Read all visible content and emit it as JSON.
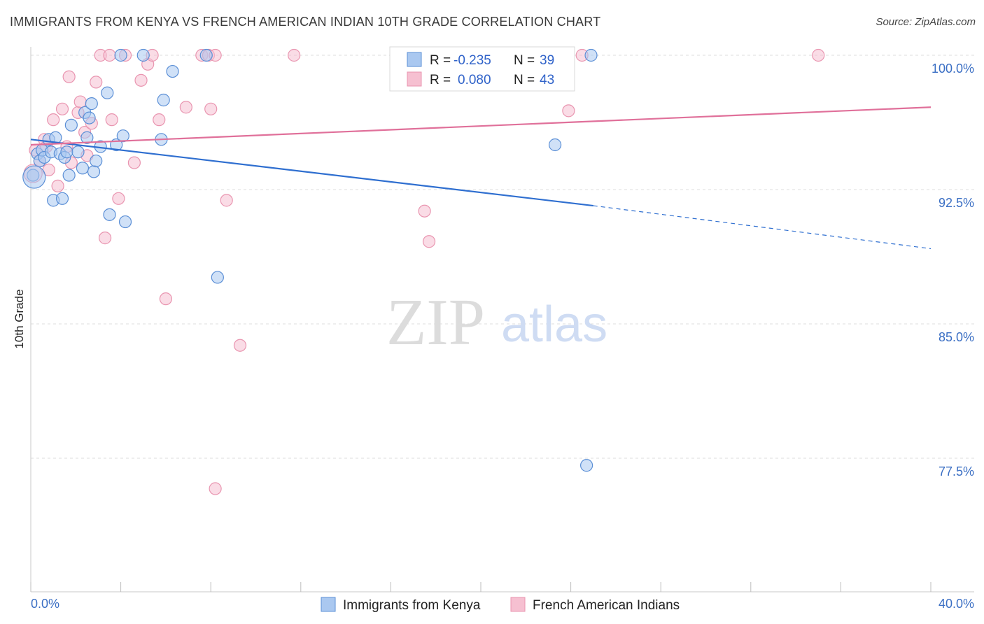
{
  "title": "IMMIGRANTS FROM KENYA VS FRENCH AMERICAN INDIAN 10TH GRADE CORRELATION CHART",
  "source": "Source: ZipAtlas.com",
  "watermark": {
    "zip": "ZIP",
    "atlas": "atlas"
  },
  "colors": {
    "blue_fill": "#aac8f0",
    "blue_stroke": "#5b8fd6",
    "blue_line": "#2f6fd0",
    "pink_fill": "#f6c0d1",
    "pink_stroke": "#e995b0",
    "pink_line": "#e0709a",
    "grid": "#dedede",
    "axis_text": "#3b6fc4"
  },
  "legend": {
    "rows": [
      {
        "r_label": "R =",
        "r_value": "-0.235",
        "n_label": "N =",
        "n_value": "39"
      },
      {
        "r_label": "R =",
        "r_value": "0.080",
        "n_label": "N =",
        "n_value": "43"
      }
    ]
  },
  "chart_data": {
    "type": "scatter",
    "title": "IMMIGRANTS FROM KENYA VS FRENCH AMERICAN INDIAN 10TH GRADE CORRELATION CHART",
    "xlabel": "",
    "ylabel": "10th Grade",
    "xlim": [
      0,
      40
    ],
    "ylim": [
      70.5,
      101.8
    ],
    "x_tick_labels": [
      "0.0%",
      "40.0%"
    ],
    "y_ticks": [
      100,
      92.5,
      85,
      77.5
    ],
    "y_tick_labels": [
      "100.0%",
      "92.5%",
      "85.0%",
      "77.5%"
    ],
    "series": [
      {
        "name": "Immigrants from Kenya",
        "color": "blue",
        "trend": {
          "x0": 0,
          "y0": 95.3,
          "x1": 25,
          "y1": 91.6,
          "dash_to_x": 40,
          "dash_to_y": 89.2
        },
        "points": [
          [
            0.1,
            93.3
          ],
          [
            0.3,
            94.5
          ],
          [
            0.4,
            94.1
          ],
          [
            0.5,
            94.7
          ],
          [
            0.6,
            94.3
          ],
          [
            0.8,
            95.3
          ],
          [
            0.9,
            94.6
          ],
          [
            1.0,
            91.9
          ],
          [
            1.1,
            95.4
          ],
          [
            1.3,
            94.5
          ],
          [
            1.4,
            92.0
          ],
          [
            1.5,
            94.3
          ],
          [
            1.6,
            94.6
          ],
          [
            1.7,
            93.3
          ],
          [
            1.8,
            96.1
          ],
          [
            2.1,
            94.6
          ],
          [
            2.3,
            93.7
          ],
          [
            2.4,
            96.8
          ],
          [
            2.5,
            95.4
          ],
          [
            2.6,
            96.5
          ],
          [
            2.7,
            97.3
          ],
          [
            2.8,
            93.5
          ],
          [
            2.9,
            94.1
          ],
          [
            3.1,
            94.9
          ],
          [
            3.4,
            97.9
          ],
          [
            3.5,
            91.1
          ],
          [
            3.8,
            95.0
          ],
          [
            4.0,
            100.0
          ],
          [
            4.1,
            95.5
          ],
          [
            4.2,
            90.7
          ],
          [
            5.0,
            100.0
          ],
          [
            5.8,
            95.3
          ],
          [
            5.9,
            97.5
          ],
          [
            6.3,
            99.1
          ],
          [
            7.8,
            100.0
          ],
          [
            8.3,
            87.6
          ],
          [
            23.3,
            95.0
          ],
          [
            24.7,
            77.1
          ],
          [
            24.9,
            100.0
          ]
        ]
      },
      {
        "name": "French American Indians",
        "color": "pink",
        "trend": {
          "x0": 0,
          "y0": 95.0,
          "x1": 40,
          "y1": 97.1
        },
        "points": [
          [
            0.2,
            94.7
          ],
          [
            0.4,
            94.1
          ],
          [
            0.6,
            95.3
          ],
          [
            0.7,
            94.9
          ],
          [
            0.8,
            93.6
          ],
          [
            1.0,
            96.4
          ],
          [
            1.2,
            92.7
          ],
          [
            1.4,
            97.0
          ],
          [
            1.6,
            94.9
          ],
          [
            1.7,
            98.8
          ],
          [
            1.8,
            94.0
          ],
          [
            2.1,
            96.8
          ],
          [
            2.2,
            97.4
          ],
          [
            2.4,
            95.7
          ],
          [
            2.5,
            94.4
          ],
          [
            2.7,
            96.2
          ],
          [
            2.9,
            98.5
          ],
          [
            3.1,
            100.0
          ],
          [
            3.3,
            89.8
          ],
          [
            3.5,
            100.0
          ],
          [
            3.6,
            96.4
          ],
          [
            3.9,
            92.0
          ],
          [
            4.2,
            100.0
          ],
          [
            4.6,
            94.0
          ],
          [
            4.9,
            98.6
          ],
          [
            5.2,
            99.5
          ],
          [
            5.4,
            100.0
          ],
          [
            5.7,
            96.4
          ],
          [
            6.0,
            86.4
          ],
          [
            6.9,
            97.1
          ],
          [
            7.6,
            100.0
          ],
          [
            7.9,
            100.0
          ],
          [
            8.0,
            97.0
          ],
          [
            8.2,
            100.0
          ],
          [
            8.7,
            91.9
          ],
          [
            9.3,
            83.8
          ],
          [
            11.7,
            100.0
          ],
          [
            17.5,
            91.3
          ],
          [
            17.7,
            89.6
          ],
          [
            23.9,
            96.9
          ],
          [
            24.5,
            100.0
          ],
          [
            35.0,
            100.0
          ],
          [
            8.2,
            75.8
          ]
        ]
      }
    ],
    "bottom_legend": [
      "Immigrants from Kenya",
      "French American Indians"
    ]
  }
}
